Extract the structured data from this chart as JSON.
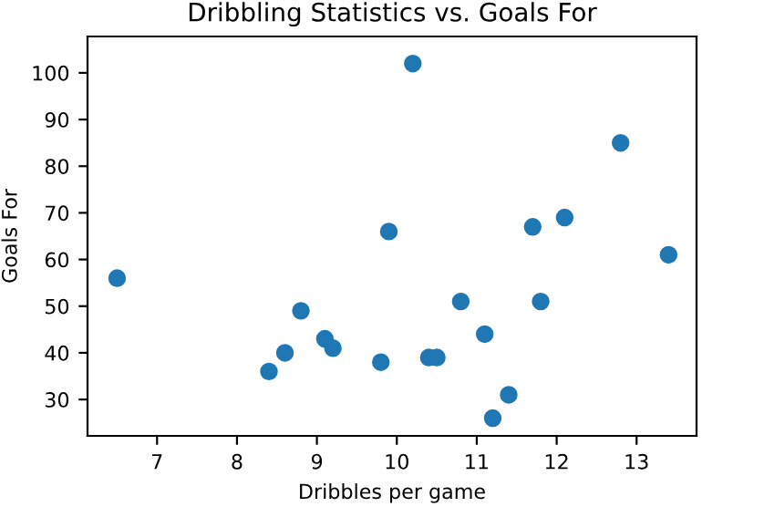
{
  "chart_data": {
    "type": "scatter",
    "title": "Dribbling Statistics vs. Goals For",
    "xlabel": "Dribbles per game",
    "ylabel": "Goals For",
    "x": [
      6.5,
      8.4,
      8.6,
      8.8,
      9.1,
      9.2,
      9.8,
      9.9,
      10.2,
      10.4,
      10.5,
      10.8,
      11.1,
      11.2,
      11.4,
      11.7,
      11.8,
      12.1,
      12.8,
      13.4
    ],
    "values": [
      56,
      36,
      40,
      49,
      43,
      41,
      38,
      66,
      102,
      39,
      39,
      51,
      44,
      26,
      31,
      67,
      51,
      69,
      85,
      61
    ],
    "color": "#1f77b4",
    "marker": "circle",
    "xlim": [
      6.13,
      13.75
    ],
    "xticks": [
      7,
      8,
      9,
      10,
      11,
      12,
      13
    ],
    "ylim": [
      22.2,
      107.8
    ],
    "yticks": [
      30,
      40,
      50,
      60,
      70,
      80,
      90,
      100
    ],
    "grid": false,
    "legend": false
  }
}
